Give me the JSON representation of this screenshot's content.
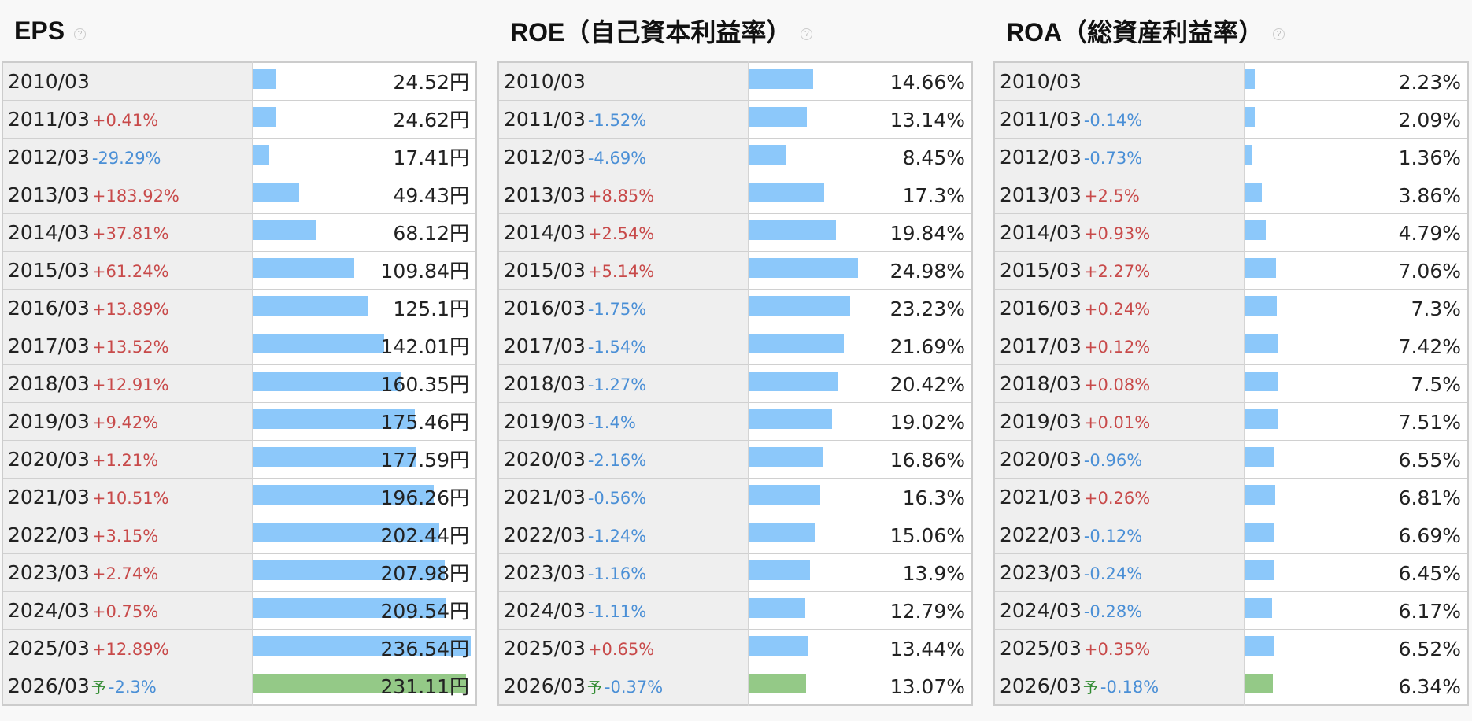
{
  "forecast_mark": "予",
  "help_mark": "?",
  "chart_data": [
    {
      "type": "bar",
      "title": "EPS",
      "unit": "円",
      "categories": [
        "2010/03",
        "2011/03",
        "2012/03",
        "2013/03",
        "2014/03",
        "2015/03",
        "2016/03",
        "2017/03",
        "2018/03",
        "2019/03",
        "2020/03",
        "2021/03",
        "2022/03",
        "2023/03",
        "2024/03",
        "2025/03",
        "2026/03"
      ],
      "values": [
        24.52,
        24.62,
        17.41,
        49.43,
        68.12,
        109.84,
        125.1,
        142.01,
        160.35,
        175.46,
        177.59,
        196.26,
        202.44,
        207.98,
        209.54,
        236.54,
        231.11
      ],
      "changes": [
        "",
        "+0.41%",
        "-29.29%",
        "+183.92%",
        "+37.81%",
        "+61.24%",
        "+13.89%",
        "+13.52%",
        "+12.91%",
        "+9.42%",
        "+1.21%",
        "+10.51%",
        "+3.15%",
        "+2.74%",
        "+0.75%",
        "+12.89%",
        "-2.3%"
      ],
      "forecast_index": 16,
      "bar_max": 236.54,
      "bar_color": "#8cc8fa",
      "forecast_color": "#94c987"
    },
    {
      "type": "bar",
      "title": "ROE（自己資本利益率）",
      "unit": "%",
      "categories": [
        "2010/03",
        "2011/03",
        "2012/03",
        "2013/03",
        "2014/03",
        "2015/03",
        "2016/03",
        "2017/03",
        "2018/03",
        "2019/03",
        "2020/03",
        "2021/03",
        "2022/03",
        "2023/03",
        "2024/03",
        "2025/03",
        "2026/03"
      ],
      "values": [
        14.66,
        13.14,
        8.45,
        17.3,
        19.84,
        24.98,
        23.23,
        21.69,
        20.42,
        19.02,
        16.86,
        16.3,
        15.06,
        13.9,
        12.79,
        13.44,
        13.07
      ],
      "changes": [
        "",
        "-1.52%",
        "-4.69%",
        "+8.85%",
        "+2.54%",
        "+5.14%",
        "-1.75%",
        "-1.54%",
        "-1.27%",
        "-1.4%",
        "-2.16%",
        "-0.56%",
        "-1.24%",
        "-1.16%",
        "-1.11%",
        "+0.65%",
        "-0.37%"
      ],
      "forecast_index": 16,
      "bar_max": 50,
      "bar_color": "#8cc8fa",
      "forecast_color": "#94c987"
    },
    {
      "type": "bar",
      "title": "ROA（総資産利益率）",
      "unit": "%",
      "categories": [
        "2010/03",
        "2011/03",
        "2012/03",
        "2013/03",
        "2014/03",
        "2015/03",
        "2016/03",
        "2017/03",
        "2018/03",
        "2019/03",
        "2020/03",
        "2021/03",
        "2022/03",
        "2023/03",
        "2024/03",
        "2025/03",
        "2026/03"
      ],
      "values": [
        2.23,
        2.09,
        1.36,
        3.86,
        4.79,
        7.06,
        7.3,
        7.42,
        7.5,
        7.51,
        6.55,
        6.81,
        6.69,
        6.45,
        6.17,
        6.52,
        6.34
      ],
      "changes": [
        "",
        "-0.14%",
        "-0.73%",
        "+2.5%",
        "+0.93%",
        "+2.27%",
        "+0.24%",
        "+0.12%",
        "+0.08%",
        "+0.01%",
        "-0.96%",
        "+0.26%",
        "-0.12%",
        "-0.24%",
        "-0.28%",
        "+0.35%",
        "-0.18%"
      ],
      "forecast_index": 16,
      "bar_max": 50,
      "bar_color": "#8cc8fa",
      "forecast_color": "#94c987"
    }
  ]
}
